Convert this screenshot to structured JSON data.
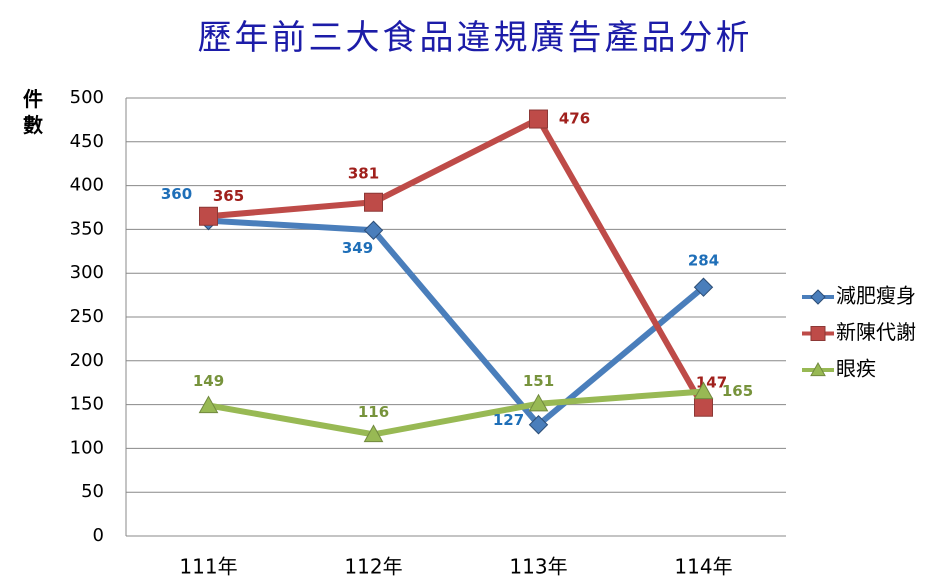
{
  "chart_data": {
    "type": "line",
    "title": "歷年前三大食品違規廣告產品分析",
    "y_label": "件數",
    "categories": [
      "111年",
      "112年",
      "113年",
      "114年"
    ],
    "series": [
      {
        "name": "減肥瘦身",
        "color": "#4a7ebb",
        "label_color": "#1f6fb8",
        "marker": "diamond",
        "values": [
          360,
          349,
          127,
          284
        ]
      },
      {
        "name": "新陳代謝",
        "color": "#be4b48",
        "label_color": "#a0201c",
        "marker": "square",
        "values": [
          365,
          381,
          476,
          147
        ]
      },
      {
        "name": "眼疾",
        "color": "#98b954",
        "label_color": "#77933c",
        "marker": "triangle",
        "values": [
          149,
          116,
          151,
          165
        ]
      }
    ],
    "ylim": [
      0,
      500
    ],
    "yticks": [
      0,
      50,
      100,
      150,
      200,
      250,
      300,
      350,
      400,
      450,
      500
    ],
    "grid": true,
    "legend": "right"
  }
}
